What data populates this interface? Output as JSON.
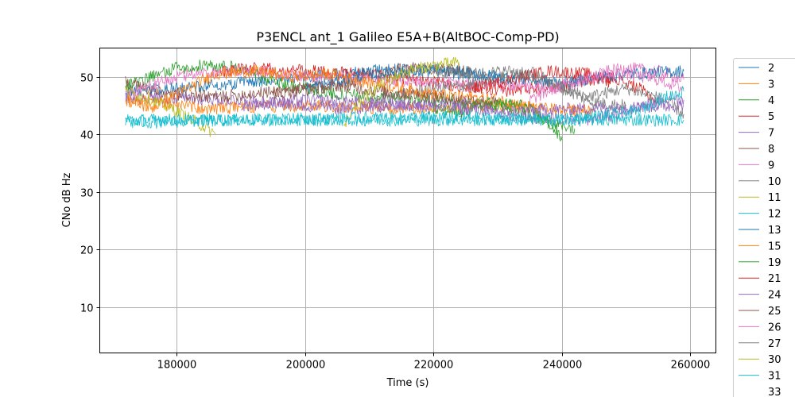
{
  "chart_data": {
    "type": "line",
    "title": "P3ENCL ant_1 Galileo E5A+B(AltBOC-Comp-PD)",
    "xlabel": "Time (s)",
    "ylabel": "CNo dB Hz",
    "xlim": [
      168000,
      264000
    ],
    "ylim": [
      2,
      55
    ],
    "xticks": [
      180000,
      200000,
      220000,
      240000,
      260000
    ],
    "yticks": [
      10,
      20,
      30,
      40,
      50
    ],
    "grid": true,
    "legend_position": "right",
    "series": [
      {
        "name": "2",
        "color": "#1f77b4",
        "x": [
          172000,
          180000,
          190000,
          200000,
          210000,
          220000,
          230000
        ],
        "y": [
          47.5,
          48.0,
          49.0,
          50.0,
          51.0,
          51.5,
          50.0
        ]
      },
      {
        "name": "3",
        "color": "#ff7f0e",
        "x": [
          172000,
          185000,
          200000,
          215000,
          230000,
          245000
        ],
        "y": [
          46.0,
          44.5,
          45.0,
          44.5,
          45.0,
          44.0
        ]
      },
      {
        "name": "4",
        "color": "#2ca02c",
        "x": [
          172000,
          180000,
          185000,
          190000,
          195000,
          200000,
          205000,
          212000,
          220000,
          225000,
          232000,
          238000,
          242000
        ],
        "y": [
          48.5,
          51.5,
          52.0,
          51.5,
          49.0,
          48.0,
          47.0,
          46.5,
          46.0,
          45.5,
          44.5,
          42.0,
          41.0
        ]
      },
      {
        "name": "5",
        "color": "#d62728",
        "x": [
          186000,
          192000,
          200000,
          210000,
          220000,
          230000,
          240000,
          248000,
          252000,
          255000
        ],
        "y": [
          51.0,
          51.5,
          51.0,
          50.5,
          49.0,
          47.5,
          48.5,
          50.0,
          48.0,
          45.5
        ]
      },
      {
        "name": "7",
        "color": "#9467bd",
        "x": [
          172000,
          190000,
          205000,
          215000,
          225000,
          232000,
          245000,
          255000,
          259000
        ],
        "y": [
          46.5,
          46.0,
          44.5,
          45.0,
          45.5,
          43.0,
          42.5,
          45.5,
          46.0
        ]
      },
      {
        "name": "8",
        "color": "#8c564b",
        "x": [
          172000,
          178000,
          186000,
          196000,
          206000,
          216000,
          226000
        ],
        "y": [
          49.0,
          47.0,
          46.5,
          47.5,
          49.0,
          51.5,
          51.0
        ]
      },
      {
        "name": "9",
        "color": "#e377c2",
        "x": [
          172000,
          176000,
          182000,
          188000,
          194000,
          200000,
          240000,
          245000,
          250000,
          255000,
          259000
        ],
        "y": [
          47.0,
          48.5,
          50.5,
          51.0,
          51.0,
          50.0,
          48.0,
          50.5,
          51.5,
          51.0,
          49.5
        ]
      },
      {
        "name": "10",
        "color": "#7f7f7f",
        "x": [
          210000,
          215000,
          220000,
          225000,
          230000,
          235000,
          240000,
          245000,
          250000
        ],
        "y": [
          45.5,
          47.0,
          48.0,
          48.5,
          49.5,
          51.0,
          48.0,
          45.5,
          45.0
        ]
      },
      {
        "name": "11",
        "color": "#bcbd22",
        "x": [
          172000,
          176000,
          180000,
          184000,
          186000
        ],
        "y": [
          47.5,
          46.0,
          44.0,
          41.5,
          40.0
        ]
      },
      {
        "name": "12",
        "color": "#17becf",
        "x": [
          172000,
          200000,
          230000,
          259000
        ],
        "y": [
          42.5,
          42.5,
          42.5,
          42.5
        ]
      },
      {
        "name": "13",
        "color": "#1f77b4",
        "x": [
          200000,
          210000,
          220000,
          230000,
          240000,
          250000,
          259000
        ],
        "y": [
          48.0,
          50.5,
          51.0,
          50.0,
          49.0,
          50.5,
          51.0
        ]
      },
      {
        "name": "15",
        "color": "#ff7f0e",
        "x": [
          172000,
          176000,
          180000,
          186000,
          192000,
          198000,
          204000,
          210000,
          220000,
          230000,
          236000
        ],
        "y": [
          46.0,
          44.5,
          47.0,
          50.5,
          51.0,
          50.0,
          50.5,
          49.0,
          47.0,
          46.0,
          44.5
        ]
      },
      {
        "name": "19",
        "color": "#2ca02c",
        "x": [
          220000,
          224000,
          228000,
          234000,
          238000,
          240000
        ],
        "y": [
          44.5,
          43.5,
          45.5,
          45.0,
          42.0,
          39.0
        ]
      },
      {
        "name": "21",
        "color": "#d62728",
        "x": [
          226000,
          232000,
          238000,
          244000,
          248000
        ],
        "y": [
          48.0,
          49.5,
          51.0,
          50.5,
          49.0
        ]
      },
      {
        "name": "24",
        "color": "#9467bd",
        "x": [
          190000,
          200000,
          210000,
          230000,
          259000
        ],
        "y": [
          45.0,
          46.0,
          45.5,
          44.0,
          45.0
        ]
      },
      {
        "name": "25",
        "color": "#8c564b",
        "x": [
          195000,
          205000,
          215000,
          225000,
          230000
        ],
        "y": [
          47.0,
          48.5,
          47.0,
          46.0,
          45.5
        ]
      },
      {
        "name": "26",
        "color": "#e377c2",
        "x": [
          235000,
          240000,
          245000,
          250000,
          255000,
          259000
        ],
        "y": [
          46.0,
          48.5,
          50.0,
          50.5,
          49.5,
          48.0
        ]
      },
      {
        "name": "27",
        "color": "#7f7f7f",
        "x": [
          220000,
          226000,
          232000,
          238000,
          244000,
          250000,
          256000,
          259000
        ],
        "y": [
          51.0,
          50.5,
          51.0,
          49.0,
          46.5,
          48.0,
          46.0,
          43.5
        ]
      },
      {
        "name": "30",
        "color": "#bcbd22",
        "x": [
          206000,
          208000,
          212000,
          216000,
          220000,
          224000
        ],
        "y": [
          41.0,
          45.0,
          49.0,
          51.0,
          52.0,
          52.5
        ]
      },
      {
        "name": "31",
        "color": "#17becf",
        "x": [
          172000,
          173000,
          190000,
          220000,
          240000,
          252000,
          255000,
          259000
        ],
        "y": [
          43.0,
          42.0,
          42.5,
          43.0,
          42.5,
          44.0,
          46.0,
          47.5
        ]
      }
    ],
    "legend_overflow_label": "33"
  }
}
